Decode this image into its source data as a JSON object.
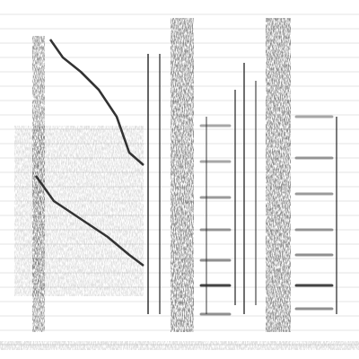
{
  "chart_data": {
    "type": "spectrogram",
    "xlim": [
      0,
      100
    ],
    "ylim": [
      0,
      100
    ],
    "yticks": [
      4,
      8,
      12,
      16,
      20,
      24,
      28,
      32,
      36,
      40,
      44,
      48,
      52,
      56,
      60,
      64,
      68,
      72,
      76,
      80,
      84,
      88,
      92,
      96
    ],
    "grid": true,
    "tick_labels": false,
    "color": "#222222",
    "series": [
      {
        "x": [
          14,
          17.5,
          22.5,
          27.5,
          32.5,
          36,
          40
        ],
        "values": [
          89,
          84,
          80,
          75,
          67.5,
          57.5,
          54
        ],
        "color": "#333333"
      },
      {
        "x": [
          10,
          15,
          22.5,
          30,
          36,
          40
        ],
        "values": [
          51,
          44,
          39,
          34,
          29,
          26
        ],
        "color": "#333333"
      }
    ],
    "bands": [
      {
        "x": [
          4,
          40
        ],
        "y": [
          17.5,
          65
        ],
        "level": 0.12
      },
      {
        "x": [
          9,
          12.5
        ],
        "y": [
          7.5,
          90
        ],
        "level": 0.45
      },
      {
        "x": [
          47.5,
          54
        ],
        "y": [
          7.5,
          95
        ],
        "level": 0.5
      },
      {
        "x": [
          74,
          81
        ],
        "y": [
          7.5,
          95
        ],
        "level": 0.5
      },
      {
        "x": [
          0,
          100
        ],
        "y": [
          2.5,
          5
        ],
        "level": 0.15
      }
    ],
    "strokes": [
      {
        "x": 41.25,
        "y": [
          12.5,
          85
        ],
        "level": 0.7
      },
      {
        "x": 44.5,
        "y": [
          12.5,
          85
        ],
        "level": 0.6
      },
      {
        "x": 57.5,
        "y": [
          12.5,
          67.5
        ],
        "level": 0.45
      },
      {
        "x": 65.5,
        "y": [
          15,
          75
        ],
        "level": 0.6
      },
      {
        "x": 68,
        "y": [
          12.5,
          82.5
        ],
        "level": 0.65
      },
      {
        "x": 71.25,
        "y": [
          15,
          77.5
        ],
        "level": 0.5
      },
      {
        "x": 93.75,
        "y": [
          12.5,
          67.5
        ],
        "level": 0.6
      }
    ],
    "notes": [
      {
        "x": [
          56,
          64
        ],
        "y": 65,
        "level": 0.4
      },
      {
        "x": [
          56,
          64
        ],
        "y": 55,
        "level": 0.4
      },
      {
        "x": [
          56,
          64
        ],
        "y": 45,
        "level": 0.45
      },
      {
        "x": [
          56,
          64
        ],
        "y": 36,
        "level": 0.45
      },
      {
        "x": [
          56,
          64
        ],
        "y": 27.5,
        "level": 0.5
      },
      {
        "x": [
          56,
          64
        ],
        "y": 20.5,
        "level": 0.85
      },
      {
        "x": [
          56,
          64
        ],
        "y": 12.5,
        "level": 0.5
      },
      {
        "x": [
          82.5,
          92.5
        ],
        "y": 67.5,
        "level": 0.4
      },
      {
        "x": [
          82.5,
          92.5
        ],
        "y": 56,
        "level": 0.45
      },
      {
        "x": [
          82.5,
          92.5
        ],
        "y": 46,
        "level": 0.45
      },
      {
        "x": [
          82.5,
          92.5
        ],
        "y": 36,
        "level": 0.45
      },
      {
        "x": [
          82.5,
          92.5
        ],
        "y": 29,
        "level": 0.5
      },
      {
        "x": [
          82.5,
          92.5
        ],
        "y": 20.5,
        "level": 0.85
      },
      {
        "x": [
          82.5,
          92.5
        ],
        "y": 14,
        "level": 0.5
      }
    ]
  }
}
